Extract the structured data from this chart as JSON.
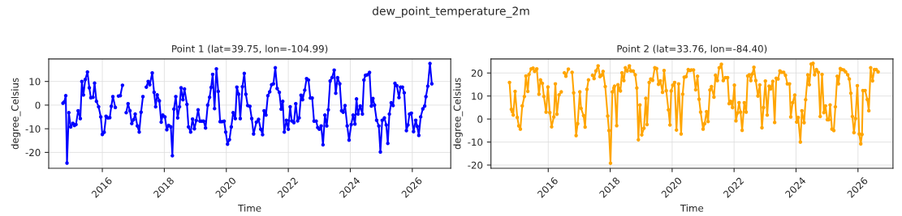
{
  "chart_data": [
    {
      "type": "line",
      "title": "Point 1 (lat=39.75, lon=-104.99)",
      "xlabel": "Time",
      "ylabel": "degree_Celsius",
      "annotations": [
        "dew_point_temperature_2m"
      ],
      "grid": true,
      "marker": "circle",
      "xlim": [
        2014.27,
        2027.24
      ],
      "xticks": [
        2016,
        2018,
        2020,
        2022,
        2024,
        2026
      ],
      "ylim": [
        -26.7,
        19.5
      ],
      "yticks": [
        -20,
        -10,
        0,
        10
      ],
      "x": [
        2014.73,
        2014.77,
        2014.82,
        2014.86,
        2014.92,
        2014.98,
        2015.05,
        2015.1,
        2015.15,
        2015.22,
        2015.29,
        2015.34,
        2015.39,
        2015.45,
        2015.52,
        2015.58,
        2015.63,
        2015.7,
        2015.75,
        2015.81,
        2015.88,
        2015.95,
        2016.0,
        2016.06,
        2016.12,
        2016.18,
        2016.24,
        2016.29,
        2016.34,
        2016.42,
        2016.47,
        2016.52,
        2016.58,
        2016.65,
        2016.71,
        2016.77,
        2016.83,
        2016.89,
        2016.95,
        2017.01,
        2017.06,
        2017.13,
        2017.19,
        2017.25,
        2017.31,
        2017.36,
        2017.42,
        2017.48,
        2017.53,
        2017.61,
        2017.67,
        2017.72,
        2017.77,
        2017.84,
        2017.9,
        2017.95,
        2018.02,
        2018.08,
        2018.14,
        2018.21,
        2018.26,
        2018.31,
        2018.37,
        2018.43,
        2018.49,
        2018.54,
        2018.6,
        2018.65,
        2018.73,
        2018.78,
        2018.85,
        2018.91,
        2018.97,
        2019.03,
        2019.09,
        2019.15,
        2019.21,
        2019.27,
        2019.33,
        2019.4,
        2019.46,
        2019.51,
        2019.56,
        2019.62,
        2019.68,
        2019.74,
        2019.8,
        2019.86,
        2019.93,
        2019.98,
        2020.04,
        2020.1,
        2020.16,
        2020.22,
        2020.29,
        2020.34,
        2020.4,
        2020.45,
        2020.52,
        2020.58,
        2020.63,
        2020.69,
        2020.76,
        2020.82,
        2020.88,
        2020.97,
        2021.04,
        2021.11,
        2021.17,
        2021.22,
        2021.28,
        2021.34,
        2021.4,
        2021.46,
        2021.52,
        2021.58,
        2021.64,
        2021.71,
        2021.77,
        2021.82,
        2021.87,
        2021.94,
        2022.0,
        2022.06,
        2022.11,
        2022.18,
        2022.24,
        2022.3,
        2022.35,
        2022.41,
        2022.46,
        2022.53,
        2022.59,
        2022.65,
        2022.71,
        2022.77,
        2022.83,
        2022.9,
        2022.95,
        2023.0,
        2023.06,
        2023.12,
        2023.18,
        2023.24,
        2023.29,
        2023.35,
        2023.41,
        2023.48,
        2023.53,
        2023.59,
        2023.66,
        2023.72,
        2023.77,
        2023.83,
        2023.9,
        2023.96,
        2024.03,
        2024.09,
        2024.15,
        2024.2,
        2024.25,
        2024.32,
        2024.39,
        2024.44,
        2024.49,
        2024.55,
        2024.62,
        2024.68,
        2024.73,
        2024.78,
        2024.85,
        2024.92,
        2024.97,
        2025.03,
        2025.1,
        2025.16,
        2025.21,
        2025.26,
        2025.32,
        2025.38,
        2025.44,
        2025.5,
        2025.57,
        2025.62,
        2025.68,
        2025.74,
        2025.81,
        2025.86,
        2025.91,
        2025.97,
        2026.04,
        2026.11,
        2026.16,
        2026.21,
        2026.27,
        2026.34,
        2026.4,
        2026.44,
        2026.5,
        2026.57,
        2026.63
      ],
      "series": [
        {
          "color": "#0000ff",
          "values": [
            0.8,
            1.3,
            4.0,
            -24.5,
            -3.2,
            -9.2,
            -7.7,
            -8.6,
            -8.2,
            -2.4,
            -5.7,
            10.0,
            4.3,
            10.8,
            14.0,
            7.3,
            3.1,
            3.3,
            9.3,
            1.6,
            -0.7,
            -5.0,
            -12.4,
            -11.5,
            -4.7,
            -5.4,
            -5.3,
            -0.5,
            3.6,
            -1.0,
            null,
            3.8,
            4.0,
            8.4,
            null,
            -3.2,
            0.6,
            -2.4,
            -7.8,
            -6.2,
            -3.8,
            -8.8,
            -11.4,
            -3.0,
            3.6,
            null,
            7.6,
            10.0,
            8.6,
            13.6,
            5.4,
            -0.7,
            4.3,
            1.8,
            -7.2,
            -4.2,
            -5.0,
            -10.4,
            -8.6,
            -9.2,
            -21.4,
            -1.7,
            3.6,
            -5.4,
            -0.7,
            7.3,
            2.3,
            6.8,
            0.3,
            -9.2,
            -11.4,
            -5.9,
            -10.0,
            -6.5,
            -2.0,
            -6.8,
            -6.8,
            -6.8,
            -9.7,
            0.0,
            3.3,
            7.5,
            13.0,
            -1.5,
            15.3,
            5.8,
            -7.0,
            -7.0,
            -6.8,
            -11.4,
            -16.5,
            -14.6,
            -9.2,
            -3.2,
            -5.7,
            7.6,
            4.6,
            -5.7,
            7.8,
            13.4,
            4.6,
            -0.2,
            -0.5,
            -5.7,
            -12.2,
            -7.2,
            -6.0,
            -10.2,
            -12.5,
            -2.4,
            -4.2,
            4.0,
            5.6,
            8.6,
            9.0,
            15.8,
            7.0,
            5.4,
            -1.7,
            1.6,
            -11.4,
            -6.4,
            -10.2,
            -0.7,
            -6.7,
            -7.4,
            0.6,
            -6.7,
            -5.4,
            4.2,
            2.3,
            6.3,
            11.2,
            10.6,
            3.0,
            3.0,
            -6.8,
            -6.8,
            -9.5,
            -10.2,
            -8.8,
            -16.8,
            -4.2,
            -8.8,
            -2.0,
            10.2,
            11.6,
            14.8,
            5.0,
            11.6,
            9.0,
            -2.4,
            -3.0,
            -0.2,
            -8.8,
            -14.8,
            -8.2,
            -4.2,
            -8.0,
            2.6,
            -3.8,
            -0.4,
            -3.8,
            10.6,
            12.6,
            12.8,
            13.8,
            -0.4,
            2.8,
            0.0,
            -6.4,
            -8.8,
            -19.8,
            -6.4,
            -5.4,
            -8.4,
            -16.2,
            -3.8,
            1.0,
            -0.2,
            9.2,
            8.2,
            3.2,
            7.6,
            7.6,
            5.2,
            -10.8,
            -8.4,
            -3.8,
            -3.4,
            -11.2,
            -6.4,
            -9.0,
            -12.8,
            -5.0,
            -1.6,
            -0.4,
            3.6,
            8.0,
            17.6,
            9.0
          ]
        }
      ]
    },
    {
      "type": "line",
      "title": "Point 2 (lat=33.76, lon=-84.40)",
      "xlabel": "Time",
      "ylabel": "degree_Celsius",
      "grid": true,
      "marker": "circle",
      "xlim": [
        2014.15,
        2027.13
      ],
      "xticks": [
        2016,
        2018,
        2020,
        2022,
        2024,
        2026
      ],
      "ylim": [
        -21.4,
        26.1
      ],
      "yticks": [
        -20,
        -10,
        0,
        10,
        20
      ],
      "x": [
        2014.75,
        2014.81,
        2014.84,
        2014.87,
        2014.93,
        2015.0,
        2015.05,
        2015.1,
        2015.16,
        2015.23,
        2015.28,
        2015.34,
        2015.38,
        2015.45,
        2015.51,
        2015.56,
        2015.63,
        2015.7,
        2015.75,
        2015.81,
        2015.86,
        2015.93,
        2015.99,
        2016.05,
        2016.11,
        2016.18,
        2016.23,
        2016.28,
        2016.35,
        2016.42,
        2016.47,
        2016.52,
        2016.57,
        2016.65,
        2016.71,
        2016.77,
        2016.82,
        2016.9,
        2016.95,
        2017.02,
        2017.06,
        2017.14,
        2017.19,
        2017.25,
        2017.3,
        2017.36,
        2017.43,
        2017.48,
        2017.54,
        2017.61,
        2017.67,
        2017.72,
        2017.77,
        2017.84,
        2017.92,
        2017.96,
        2018.01,
        2018.07,
        2018.12,
        2018.14,
        2018.21,
        2018.25,
        2018.29,
        2018.33,
        2018.38,
        2018.44,
        2018.49,
        2018.55,
        2018.62,
        2018.67,
        2018.74,
        2018.81,
        2018.86,
        2018.91,
        2018.96,
        2019.02,
        2019.09,
        2019.15,
        2019.19,
        2019.26,
        2019.31,
        2019.37,
        2019.44,
        2019.5,
        2019.56,
        2019.62,
        2019.69,
        2019.74,
        2019.81,
        2019.88,
        2019.93,
        2019.97,
        2020.02,
        2020.08,
        2020.14,
        2020.21,
        2020.29,
        2020.34,
        2020.39,
        2020.45,
        2020.52,
        2020.57,
        2020.62,
        2020.69,
        2020.76,
        2020.82,
        2020.87,
        2020.92,
        2021.0,
        2021.05,
        2021.11,
        2021.16,
        2021.22,
        2021.27,
        2021.35,
        2021.4,
        2021.46,
        2021.52,
        2021.59,
        2021.65,
        2021.72,
        2021.79,
        2021.84,
        2021.89,
        2021.95,
        2022.01,
        2022.06,
        2022.11,
        2022.16,
        2022.21,
        2022.26,
        2022.33,
        2022.39,
        2022.44,
        2022.49,
        2022.54,
        2022.59,
        2022.64,
        2022.7,
        2022.77,
        2022.83,
        2022.9,
        2022.95,
        2023.01,
        2023.07,
        2023.13,
        2023.18,
        2023.25,
        2023.31,
        2023.36,
        2023.42,
        2023.48,
        2023.53,
        2023.6,
        2023.66,
        2023.72,
        2023.79,
        2023.83,
        2023.89,
        2023.96,
        2024.02,
        2024.07,
        2024.14,
        2024.19,
        2024.26,
        2024.31,
        2024.38,
        2024.43,
        2024.49,
        2024.55,
        2024.6,
        2024.66,
        2024.72,
        2024.78,
        2024.84,
        2024.9,
        2024.95,
        2025.01,
        2025.06,
        2025.1,
        2025.16,
        2025.22,
        2025.27,
        2025.33,
        2025.37,
        2025.43,
        2025.48,
        2025.54,
        2025.6,
        2025.67,
        2025.72,
        2025.77,
        2025.82,
        2025.87,
        2025.92,
        2025.98,
        2026.04,
        2026.09,
        2026.13,
        2026.16,
        2026.23,
        2026.3,
        2026.35,
        2026.41,
        2026.47,
        2026.53,
        2026.59,
        2026.65
      ],
      "series": [
        {
          "color": "#ffa500",
          "values": [
            15.9,
            4.2,
            3.2,
            1.7,
            12.0,
            0.7,
            -3.0,
            -4.4,
            5.7,
            9.8,
            18.7,
            12.0,
            19.4,
            21.8,
            22.1,
            20.7,
            21.8,
            10.8,
            17.0,
            15.5,
            9.8,
            3.0,
            13.9,
            2.8,
            -3.4,
            0.9,
            15.3,
            2.1,
            10.5,
            11.8,
            null,
            20.1,
            18.6,
            21.7,
            null,
            20.3,
            11.4,
            -7.2,
            -2.0,
            11.8,
            4.6,
            1.5,
            -3.5,
            12.9,
            17.0,
            null,
            19.0,
            17.6,
            20.9,
            23.1,
            18.4,
            19.0,
            20.7,
            14.1,
            1.3,
            -5.0,
            -19.2,
            11.8,
            13.5,
            14.3,
            -2.9,
            14.9,
            13.3,
            12.2,
            20.1,
            16.7,
            22.3,
            20.9,
            23.1,
            20.9,
            20.9,
            19.2,
            13.5,
            -9.0,
            6.1,
            -6.9,
            -4.0,
            9.0,
            -2.4,
            15.9,
            17.4,
            16.8,
            22.3,
            21.9,
            15.1,
            16.6,
            11.6,
            21.1,
            12.3,
            4.0,
            -2.6,
            12.2,
            14.7,
            15.9,
            -4.8,
            15.3,
            -6.5,
            10.8,
            18.2,
            18.4,
            21.5,
            21.1,
            21.3,
            21.3,
            12.7,
            18.6,
            8.6,
            3.0,
            -4.4,
            -2.0,
            3.2,
            -1.1,
            12.6,
            14.1,
            9.5,
            19.0,
            16.7,
            22.3,
            23.8,
            16.7,
            18.0,
            18.0,
            6.7,
            7.7,
            5.0,
            14.7,
            -0.8,
            2.6,
            7.1,
            3.0,
            -4.9,
            7.1,
            3.0,
            18.7,
            19.2,
            16.7,
            19.6,
            22.5,
            16.7,
            10.0,
            14.8,
            -3.8,
            5.0,
            16.5,
            1.7,
            14.3,
            13.1,
            16.4,
            -1.5,
            17.7,
            17.4,
            20.9,
            20.3,
            20.3,
            19.0,
            15.3,
            15.3,
            0.9,
            7.1,
            10.4,
            -1.3,
            0.7,
            -10.0,
            3.6,
            -1.6,
            8.4,
            19.2,
            14.9,
            23.9,
            24.2,
            19.2,
            21.5,
            20.3,
            1.1,
            19.4,
            2.8,
            5.7,
            -0.3,
            -0.3,
            6.1,
            -4.4,
            -5.0,
            5.3,
            18.6,
            15.3,
            21.9,
            21.5,
            21.3,
            20.5,
            19.2,
            17.4,
            11.2,
            1.1,
            -5.9,
            0.2,
            14.5,
            -6.5,
            -10.8,
            -6.7,
            12.4,
            12.4,
            8.5,
            3.6,
            22.3,
            16.6,
            21.5,
            21.5,
            20.5
          ]
        }
      ]
    }
  ]
}
